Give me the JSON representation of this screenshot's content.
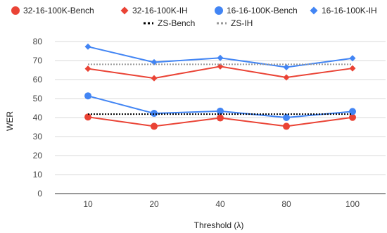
{
  "chart_data": {
    "type": "line",
    "categories": [
      "10",
      "20",
      "40",
      "80",
      "100"
    ],
    "xlabel": "Threshold (λ)",
    "ylabel": "WER",
    "ylim": [
      0,
      80
    ],
    "yticks": [
      "0",
      "10",
      "20",
      "30",
      "40",
      "50",
      "60",
      "70",
      "80"
    ],
    "grid": true,
    "legend_position": "top",
    "series": [
      {
        "name": "32-16-100K-Bench",
        "values": [
          40.3,
          35.4,
          39.8,
          35.4,
          40.1
        ],
        "color": "#ea4335",
        "marker": "circle",
        "line": "solid"
      },
      {
        "name": "32-16-100K-IH",
        "values": [
          65.7,
          60.7,
          66.9,
          61.1,
          65.9
        ],
        "color": "#ea4335",
        "marker": "diamond",
        "line": "solid"
      },
      {
        "name": "16-16-100K-Bench",
        "values": [
          51.4,
          42.2,
          43.4,
          40.0,
          43.2
        ],
        "color": "#4285f4",
        "marker": "circle",
        "line": "solid"
      },
      {
        "name": "16-16-100K-IH",
        "values": [
          77.3,
          69.1,
          71.4,
          66.5,
          71.2
        ],
        "color": "#4285f4",
        "marker": "diamond",
        "line": "solid"
      },
      {
        "name": "ZS-Bench",
        "values": [
          41.8,
          41.8,
          41.8,
          41.8,
          41.8
        ],
        "color": "#000000",
        "marker": "none",
        "line": "dotted"
      },
      {
        "name": "ZS-IH",
        "values": [
          68.0,
          68.0,
          68.0,
          68.0,
          68.0
        ],
        "color": "#999999",
        "marker": "none",
        "line": "dotted"
      }
    ]
  }
}
